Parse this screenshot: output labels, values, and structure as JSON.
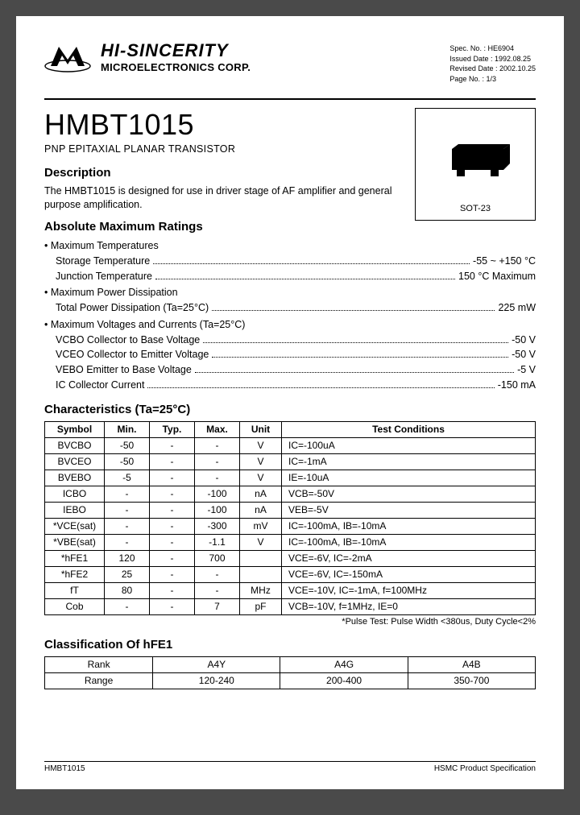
{
  "header": {
    "company_name": "HI-SINCERITY",
    "company_sub": "MICROELECTRONICS CORP.",
    "doc_info": {
      "spec_no": "Spec. No. : HE6904",
      "issued": "Issued Date : 1992.08.25",
      "revised": "Revised Date : 2002.10.25",
      "page": "Page No. : 1/3"
    }
  },
  "part": {
    "number": "HMBT1015",
    "type": "PNP EPITAXIAL PLANAR TRANSISTOR",
    "package_label": "SOT-23"
  },
  "description": {
    "title": "Description",
    "text": "The HMBT1015 is designed for use in driver stage of AF amplifier and general purpose amplification."
  },
  "amr": {
    "title": "Absolute Maximum Ratings",
    "groups": [
      {
        "header": "Maximum Temperatures",
        "items": [
          {
            "label": "Storage Temperature",
            "value": "-55 ~ +150 °C"
          },
          {
            "label": "Junction Temperature",
            "value": "150 °C Maximum"
          }
        ]
      },
      {
        "header": "Maximum Power Dissipation",
        "items": [
          {
            "label": "Total Power Dissipation (Ta=25°C)",
            "value": "225 mW"
          }
        ]
      },
      {
        "header": "Maximum Voltages and Currents (Ta=25°C)",
        "items": [
          {
            "label": "VCBO Collector to Base Voltage",
            "value": "-50 V"
          },
          {
            "label": "VCEO Collector to Emitter Voltage",
            "value": "-50 V"
          },
          {
            "label": "VEBO Emitter to Base Voltage",
            "value": "-5 V"
          },
          {
            "label": "IC Collector Current",
            "value": "-150 mA"
          }
        ]
      }
    ]
  },
  "characteristics": {
    "title": "Characteristics (Ta=25°C)",
    "columns": [
      "Symbol",
      "Min.",
      "Typ.",
      "Max.",
      "Unit",
      "Test Conditions"
    ],
    "rows": [
      [
        "BVCBO",
        "-50",
        "-",
        "-",
        "V",
        "IC=-100uA"
      ],
      [
        "BVCEO",
        "-50",
        "-",
        "-",
        "V",
        "IC=-1mA"
      ],
      [
        "BVEBO",
        "-5",
        "-",
        "-",
        "V",
        "IE=-10uA"
      ],
      [
        "ICBO",
        "-",
        "-",
        "-100",
        "nA",
        "VCB=-50V"
      ],
      [
        "IEBO",
        "-",
        "-",
        "-100",
        "nA",
        "VEB=-5V"
      ],
      [
        "*VCE(sat)",
        "-",
        "-",
        "-300",
        "mV",
        "IC=-100mA, IB=-10mA"
      ],
      [
        "*VBE(sat)",
        "-",
        "-",
        "-1.1",
        "V",
        "IC=-100mA, IB=-10mA"
      ],
      [
        "*hFE1",
        "120",
        "-",
        "700",
        "",
        "VCE=-6V, IC=-2mA"
      ],
      [
        "*hFE2",
        "25",
        "-",
        "-",
        "",
        "VCE=-6V, IC=-150mA"
      ],
      [
        "fT",
        "80",
        "-",
        "-",
        "MHz",
        "VCE=-10V, IC=-1mA, f=100MHz"
      ],
      [
        "Cob",
        "-",
        "-",
        "7",
        "pF",
        "VCB=-10V, f=1MHz, IE=0"
      ]
    ],
    "note": "*Pulse Test: Pulse Width <380us, Duty Cycle<2%"
  },
  "hfe": {
    "title": "Classification Of hFE1",
    "columns": [
      "Rank",
      "A4Y",
      "A4G",
      "A4B"
    ],
    "row_label": "Range",
    "row_values": [
      "120-240",
      "200-400",
      "350-700"
    ]
  },
  "footer": {
    "left": "HMBT1015",
    "right": "HSMC Product Specification"
  },
  "colors": {
    "page_bg": "#ffffff",
    "body_bg": "#4a4a4a",
    "text": "#000000",
    "border": "#000000"
  }
}
